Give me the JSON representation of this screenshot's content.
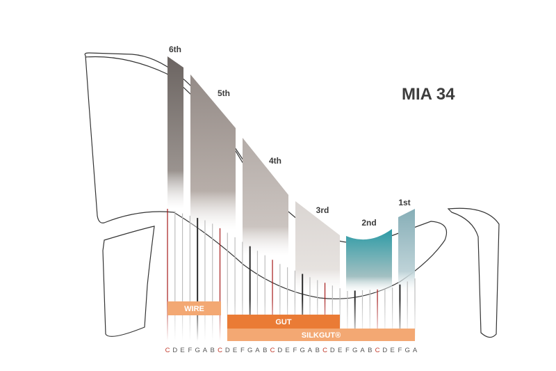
{
  "title": "MIA 34",
  "octaves": [
    {
      "label": "6th",
      "gradient_top": "#6b6461",
      "gradient_bottom": "#9a938f"
    },
    {
      "label": "5th",
      "gradient_top": "#948b87",
      "gradient_bottom": "#b7aea9"
    },
    {
      "label": "4th",
      "gradient_top": "#b4aca8",
      "gradient_bottom": "#cbc4c0"
    },
    {
      "label": "3rd",
      "gradient_top": "#dad5d2",
      "gradient_bottom": "#e6e2df"
    },
    {
      "label": "2nd",
      "gradient_top": "#2b9aa5",
      "gradient_bottom": "#a3c0c2"
    },
    {
      "label": "1st",
      "gradient_top": "#86aeb7",
      "gradient_bottom": "#bed3d8"
    }
  ],
  "string_notes": [
    "C",
    "D",
    "E",
    "F",
    "G",
    "A",
    "B",
    "C",
    "D",
    "E",
    "F",
    "G",
    "A",
    "B",
    "C",
    "D",
    "E",
    "F",
    "G",
    "A",
    "B",
    "C",
    "D",
    "E",
    "F",
    "G",
    "A",
    "B",
    "C",
    "D",
    "E",
    "F",
    "G",
    "A"
  ],
  "red_strings": [
    0,
    7,
    14,
    21,
    28
  ],
  "bold_strings": [
    4,
    11,
    18,
    25,
    31
  ],
  "string_types": [
    {
      "label": "WIRE",
      "color": "#f3a873",
      "text_color": "#ffffff"
    },
    {
      "label": "GUT",
      "color": "#ea7b35",
      "text_color": "#ffffff"
    },
    {
      "label": "SILKGUT®",
      "color": "#f3a873",
      "text_color": "#ffffff"
    }
  ],
  "colors": {
    "note_red": "#c0392b",
    "note_dark": "#555555",
    "outline": "#333333",
    "string_red": "#a51a1a",
    "string_dark": "#2a2a2a",
    "string_light": "#bdbdbd"
  }
}
